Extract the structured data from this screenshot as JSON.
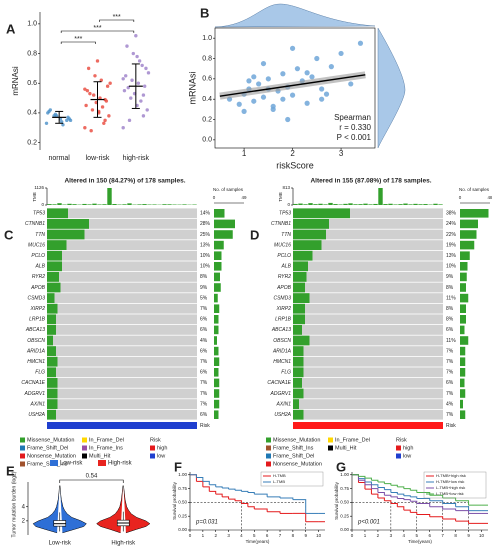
{
  "chart_data": [
    {
      "type": "strip",
      "panel": "A",
      "ylabel": "mRNAsi",
      "categories": [
        "normal",
        "low-risk",
        "high-risk"
      ],
      "colors": [
        "#4a90c8",
        "#e8463a",
        "#9b7ec8"
      ],
      "points": [
        [
          0.33,
          0.35,
          0.36,
          0.38,
          0.4,
          0.37,
          0.34,
          0.39,
          0.41,
          0.36,
          0.32,
          0.38,
          0.42,
          0.35
        ],
        [
          0.3,
          0.35,
          0.4,
          0.42,
          0.45,
          0.48,
          0.5,
          0.52,
          0.55,
          0.58,
          0.62,
          0.65,
          0.7,
          0.38,
          0.44,
          0.47,
          0.53,
          0.6,
          0.33,
          0.75,
          0.28,
          0.56,
          0.49,
          0.41
        ],
        [
          0.3,
          0.38,
          0.45,
          0.5,
          0.55,
          0.58,
          0.6,
          0.62,
          0.65,
          0.7,
          0.75,
          0.8,
          0.85,
          0.42,
          0.48,
          0.53,
          0.57,
          0.67,
          0.72,
          0.92,
          0.35,
          0.63,
          0.52,
          0.78
        ]
      ],
      "means": [
        0.37,
        0.49,
        0.58
      ],
      "sd": [
        0.04,
        0.12,
        0.15
      ],
      "brackets": [
        {
          "pair": [
            "normal",
            "low-risk"
          ],
          "label": "***"
        },
        {
          "pair": [
            "normal",
            "high-risk"
          ],
          "label": "***"
        },
        {
          "pair": [
            "low-risk",
            "high-risk"
          ],
          "label": "***"
        }
      ],
      "ylim": [
        0.15,
        1.08
      ],
      "yticks": [
        0.2,
        0.4,
        0.6,
        0.8,
        {
          "value": 1,
          "label": "1.0"
        }
      ]
    },
    {
      "type": "scatter",
      "panel": "B",
      "xlabel": "riskScore",
      "ylabel": "mRNAsi",
      "color": "#6ea6d8",
      "x": [
        0.7,
        0.9,
        1.0,
        1.1,
        1.2,
        1.3,
        1.4,
        1.5,
        1.6,
        1.7,
        1.8,
        1.9,
        2.0,
        2.1,
        2.2,
        2.3,
        2.4,
        2.5,
        2.6,
        2.7,
        2.8,
        3.0,
        3.2,
        3.4,
        1.0,
        1.2,
        1.5,
        1.8,
        2.0,
        2.3,
        1.4,
        1.6,
        2.6,
        1.1,
        1.9
      ],
      "y": [
        0.4,
        0.35,
        0.45,
        0.5,
        0.38,
        0.55,
        0.42,
        0.6,
        0.3,
        0.48,
        0.65,
        0.52,
        0.44,
        0.7,
        0.58,
        0.36,
        0.62,
        0.8,
        0.5,
        0.45,
        0.72,
        0.85,
        0.55,
        0.95,
        0.28,
        0.62,
        0.5,
        0.4,
        0.9,
        0.66,
        0.75,
        0.33,
        0.4,
        0.58,
        0.2
      ],
      "fit": {
        "x": [
          0.5,
          3.5
        ],
        "y": [
          0.43,
          0.64
        ]
      },
      "annotations": [
        "Spearman",
        "r = 0.330",
        "P < 0.001"
      ],
      "xlim": [
        0.4,
        3.7
      ],
      "ylim": [
        -0.08,
        1.1
      ],
      "xticks": [
        1,
        2,
        3
      ],
      "yticks": [
        {
          "value": 0,
          "label": "0.0"
        },
        0.2,
        0.4,
        0.6,
        0.8,
        {
          "value": 1,
          "label": "1.0"
        }
      ]
    },
    {
      "type": "oncoprint",
      "panel": "C",
      "title": "Altered in 150 (84.27%) of 178 samples.",
      "tmb_label": "TMB",
      "tmb_ticks": [
        0,
        1126
      ],
      "tmb": [
        60,
        45,
        120,
        30,
        80,
        55,
        25,
        70,
        40,
        90,
        35,
        50,
        1126,
        65,
        30,
        45,
        110,
        25,
        40,
        60,
        30,
        35,
        20,
        50,
        45,
        30,
        25,
        40,
        20,
        30
      ],
      "count_label": "No. of samples",
      "count_ticks": [
        0,
        49
      ],
      "genes": [
        "TP53",
        "CTNNB1",
        "TTN",
        "MUC16",
        "PCLO",
        "ALB",
        "RYR2",
        "APOB",
        "CSMD3",
        "XIRP2",
        "LRP1B",
        "ABCA13",
        "OBSCN",
        "ARID1A",
        "HMCN1",
        "FLG",
        "CACNA1E",
        "ADGRV1",
        "AXIN1",
        "USH2A"
      ],
      "values": [
        14,
        28,
        25,
        13,
        10,
        10,
        8,
        9,
        5,
        7,
        6,
        6,
        4,
        6,
        7,
        6,
        7,
        7,
        7,
        6
      ],
      "value_labels": [
        "14%",
        "28%",
        "25%",
        "13%",
        "10%",
        "10%",
        "8%",
        "9%",
        "5%",
        "7%",
        "6%",
        "6%",
        "4%",
        "6%",
        "7%",
        "6%",
        "7%",
        "7%",
        "7%",
        "6%"
      ],
      "risk_label": "Risk",
      "risk_color": "#1f3fcf",
      "legend": [
        {
          "name": "Missense_Mutation",
          "color": "#33a02c"
        },
        {
          "name": "Frame_Shift_Del",
          "color": "#1f78b4"
        },
        {
          "name": "Nonsense_Mutation",
          "color": "#e31a1c"
        },
        {
          "name": "Frame_Shift_Ins",
          "color": "#a0522d"
        },
        {
          "name": "In_Frame_Del",
          "color": "#ffd700"
        },
        {
          "name": "In_Frame_Ins",
          "color": "#984ea3"
        },
        {
          "name": "Multi_Hit",
          "color": "#000000"
        }
      ],
      "risk_legend_title": "Risk",
      "risk_legend": [
        {
          "name": "high",
          "color": "#e41a1c"
        },
        {
          "name": "low",
          "color": "#1f3fcf"
        }
      ]
    },
    {
      "type": "oncoprint",
      "panel": "D",
      "title": "Altered in 155 (87.08%) of 178 samples.",
      "tmb_label": "TMB",
      "tmb_ticks": [
        0,
        813
      ],
      "tmb": [
        50,
        70,
        35,
        90,
        40,
        60,
        30,
        100,
        45,
        25,
        55,
        80,
        35,
        40,
        65,
        30,
        50,
        813,
        45,
        60,
        25,
        40,
        70,
        30,
        55,
        35,
        45,
        20,
        60,
        30
      ],
      "count_label": "No. of samples",
      "count_ticks": [
        0,
        48
      ],
      "genes": [
        "TP53",
        "CTNNB1",
        "TTN",
        "MUC16",
        "PCLO",
        "ALB",
        "RYR2",
        "APOB",
        "CSMD3",
        "XIRP2",
        "LRP1B",
        "ABCA13",
        "OBSCN",
        "ARID1A",
        "HMCN1",
        "FLG",
        "CACNA1E",
        "ADGRV1",
        "AXIN1",
        "USH2A"
      ],
      "values": [
        38,
        24,
        22,
        19,
        13,
        10,
        9,
        8,
        11,
        8,
        8,
        6,
        11,
        7,
        7,
        7,
        6,
        7,
        4,
        7
      ],
      "value_labels": [
        "38%",
        "24%",
        "22%",
        "19%",
        "13%",
        "10%",
        "9%",
        "8%",
        "11%",
        "8%",
        "8%",
        "6%",
        "11%",
        "7%",
        "7%",
        "7%",
        "6%",
        "7%",
        "4%",
        "7%"
      ],
      "risk_label": "Risk",
      "risk_color": "#ff1a1a",
      "legend": [
        {
          "name": "Missense_Mutation",
          "color": "#33a02c"
        },
        {
          "name": "Frame_Shift_Ins",
          "color": "#a0522d"
        },
        {
          "name": "Frame_Shift_Del",
          "color": "#1f78b4"
        },
        {
          "name": "Nonsense_Mutation",
          "color": "#e31a1c"
        },
        {
          "name": "In_Frame_Del",
          "color": "#ffd700"
        },
        {
          "name": "Multi_Hit",
          "color": "#000000"
        }
      ],
      "risk_legend_title": "Risk",
      "risk_legend": [
        {
          "name": "high",
          "color": "#e41a1c"
        },
        {
          "name": "low",
          "color": "#1f3fcf"
        }
      ]
    },
    {
      "type": "violin",
      "panel": "E",
      "ylabel": "Tumor mutation burden (log2)",
      "p_label": "0.54",
      "levels": [
        0.3,
        0.8,
        1.2,
        1.6,
        2.0,
        2.5,
        3.0,
        3.5,
        4.0,
        5.0,
        6.0,
        7.0
      ],
      "series": [
        {
          "name": "Low-risk",
          "color": "#2e6fd6",
          "density": [
            0.1,
            0.55,
            0.9,
            1.0,
            0.8,
            0.45,
            0.28,
            0.18,
            0.12,
            0.06,
            0.03,
            0.01
          ],
          "q1": 1.25,
          "median": 1.6,
          "q3": 2.05,
          "whisker": [
            0.5,
            3.2
          ]
        },
        {
          "name": "High-risk",
          "color": "#e8241f",
          "density": [
            0.1,
            0.5,
            0.85,
            1.0,
            0.85,
            0.5,
            0.3,
            0.2,
            0.13,
            0.07,
            0.04,
            0.01
          ],
          "q1": 1.3,
          "median": 1.7,
          "q3": 2.1,
          "whisker": [
            0.5,
            3.3
          ]
        }
      ],
      "ylim": [
        0,
        7.5
      ],
      "yticks": [
        2,
        4
      ]
    },
    {
      "type": "survival",
      "panel": "F",
      "xlabel": "Time(years)",
      "ylabel": "Survival probability",
      "p_label": "p=0.031",
      "x": [
        0,
        0.5,
        1,
        1.5,
        2,
        2.5,
        3,
        3.5,
        4,
        4.5,
        5,
        6,
        7,
        8,
        9,
        10
      ],
      "series": [
        {
          "name": "H-TMB",
          "color": "#e41a1c",
          "values": [
            1,
            0.88,
            0.78,
            0.7,
            0.65,
            0.6,
            0.56,
            0.53,
            0.48,
            0.42,
            0.38,
            0.33,
            0.3,
            0.3,
            0.15,
            0.15
          ]
        },
        {
          "name": "L-TMB",
          "color": "#377eb8",
          "values": [
            1,
            0.95,
            0.88,
            0.82,
            0.78,
            0.76,
            0.74,
            0.72,
            0.7,
            0.68,
            0.65,
            0.6,
            0.58,
            0.55,
            0.3,
            0.3
          ]
        }
      ],
      "median_y": 0.5,
      "median_x": [
        4,
        9
      ],
      "xlim": [
        0,
        10.5
      ],
      "ylim": [
        0,
        1.05
      ],
      "xticks": [
        0,
        1,
        2,
        3,
        4,
        5,
        6,
        7,
        8,
        9,
        10
      ],
      "yticks": [
        {
          "value": 0,
          "label": "0.00"
        },
        {
          "value": 0.25,
          "label": "0.25"
        },
        {
          "value": 0.5,
          "label": "0.50"
        },
        {
          "value": 0.75,
          "label": "0.75"
        },
        {
          "value": 1,
          "label": "1.00"
        }
      ]
    },
    {
      "type": "survival",
      "panel": "G",
      "xlabel": "Time(years)",
      "ylabel": "Survival probability",
      "p_label": "p<0.001",
      "x": [
        0,
        0.5,
        1,
        1.5,
        2,
        2.5,
        3,
        3.5,
        4,
        4.5,
        5,
        6,
        7,
        8,
        9,
        10
      ],
      "series": [
        {
          "name": "H-TMB+high risk",
          "color": "#e41a1c",
          "values": [
            1,
            0.86,
            0.74,
            0.65,
            0.58,
            0.53,
            0.48,
            0.42,
            0.36,
            0.32,
            0.28,
            0.24,
            0.2,
            0.16,
            0.12,
            0.12
          ]
        },
        {
          "name": "H-TMB+low risk",
          "color": "#377eb8",
          "values": [
            1,
            0.93,
            0.87,
            0.82,
            0.77,
            0.73,
            0.68,
            0.65,
            0.62,
            0.6,
            0.57,
            0.53,
            0.48,
            0.42,
            0.35,
            0.35
          ]
        },
        {
          "name": "L-TMB+high risk",
          "color": "#7b4fa8",
          "values": [
            1,
            0.9,
            0.82,
            0.75,
            0.68,
            0.63,
            0.6,
            0.57,
            0.55,
            0.52,
            0.48,
            0.42,
            0.38,
            0.35,
            0.3,
            0.3
          ]
        },
        {
          "name": "L-TMB+low risk",
          "color": "#4daf4a",
          "values": [
            1,
            0.97,
            0.94,
            0.9,
            0.87,
            0.84,
            0.81,
            0.78,
            0.75,
            0.72,
            0.68,
            0.63,
            0.58,
            0.53,
            0.45,
            0.45
          ]
        }
      ],
      "median_y": 0.5,
      "median_x": [
        3,
        5,
        7,
        9
      ],
      "xlim": [
        0,
        10.5
      ],
      "ylim": [
        0,
        1.05
      ],
      "xticks": [
        0,
        1,
        2,
        3,
        4,
        5,
        6,
        7,
        8,
        9,
        10
      ],
      "yticks": [
        {
          "value": 0,
          "label": "0.00"
        },
        {
          "value": 0.25,
          "label": "0.25"
        },
        {
          "value": 0.5,
          "label": "0.50"
        },
        {
          "value": 0.75,
          "label": "0.75"
        },
        {
          "value": 1,
          "label": "1.00"
        }
      ]
    }
  ]
}
